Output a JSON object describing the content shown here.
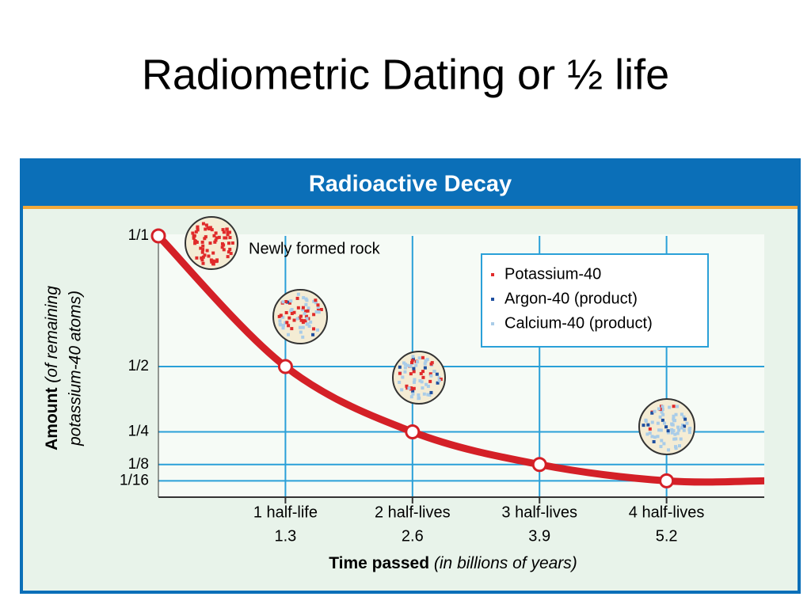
{
  "title": "Radiometric Dating or ½ life",
  "chart_data": {
    "type": "line",
    "title": "Radioactive Decay",
    "x_label": "Time passed",
    "x_label_note": "(in billions of years)",
    "y_label": "Amount",
    "y_label_note": [
      "(of remaining",
      "potassium-40 atoms)"
    ],
    "x": [
      0,
      1.3,
      2.6,
      3.9,
      5.2,
      6.2
    ],
    "values": [
      1,
      0.5,
      0.25,
      0.125,
      0.0625,
      0.0625
    ],
    "markers": [
      true,
      true,
      true,
      true,
      true,
      false
    ],
    "color": "#d42027",
    "xlim": [
      0,
      6.2
    ],
    "xticks": [
      1.3,
      2.6,
      3.9,
      5.2
    ],
    "xtick_names": [
      "1 half-life",
      "2 half-lives",
      "3 half-lives",
      "4 half-lives"
    ],
    "ylim": [
      0,
      1
    ],
    "yticks": [
      {
        "value": 1,
        "label": "1/1"
      },
      {
        "value": 0.5,
        "label": "1/2"
      },
      {
        "value": 0.25,
        "label": "1/4"
      },
      {
        "value": 0.125,
        "label": "1/8"
      },
      {
        "value": 0.0625,
        "label": "1/16"
      }
    ],
    "grid": true,
    "grid_color": "#2aa0d8",
    "annotations": [
      {
        "text": "Newly formed rock"
      }
    ],
    "legend": {
      "items": [
        {
          "label": "Potassium-40",
          "color": "#e02a2a"
        },
        {
          "label": "Argon-40 (product)",
          "color": "#1f4fa0"
        },
        {
          "label": "Calcium-40 (product)",
          "color": "#a9cce8"
        }
      ]
    }
  }
}
